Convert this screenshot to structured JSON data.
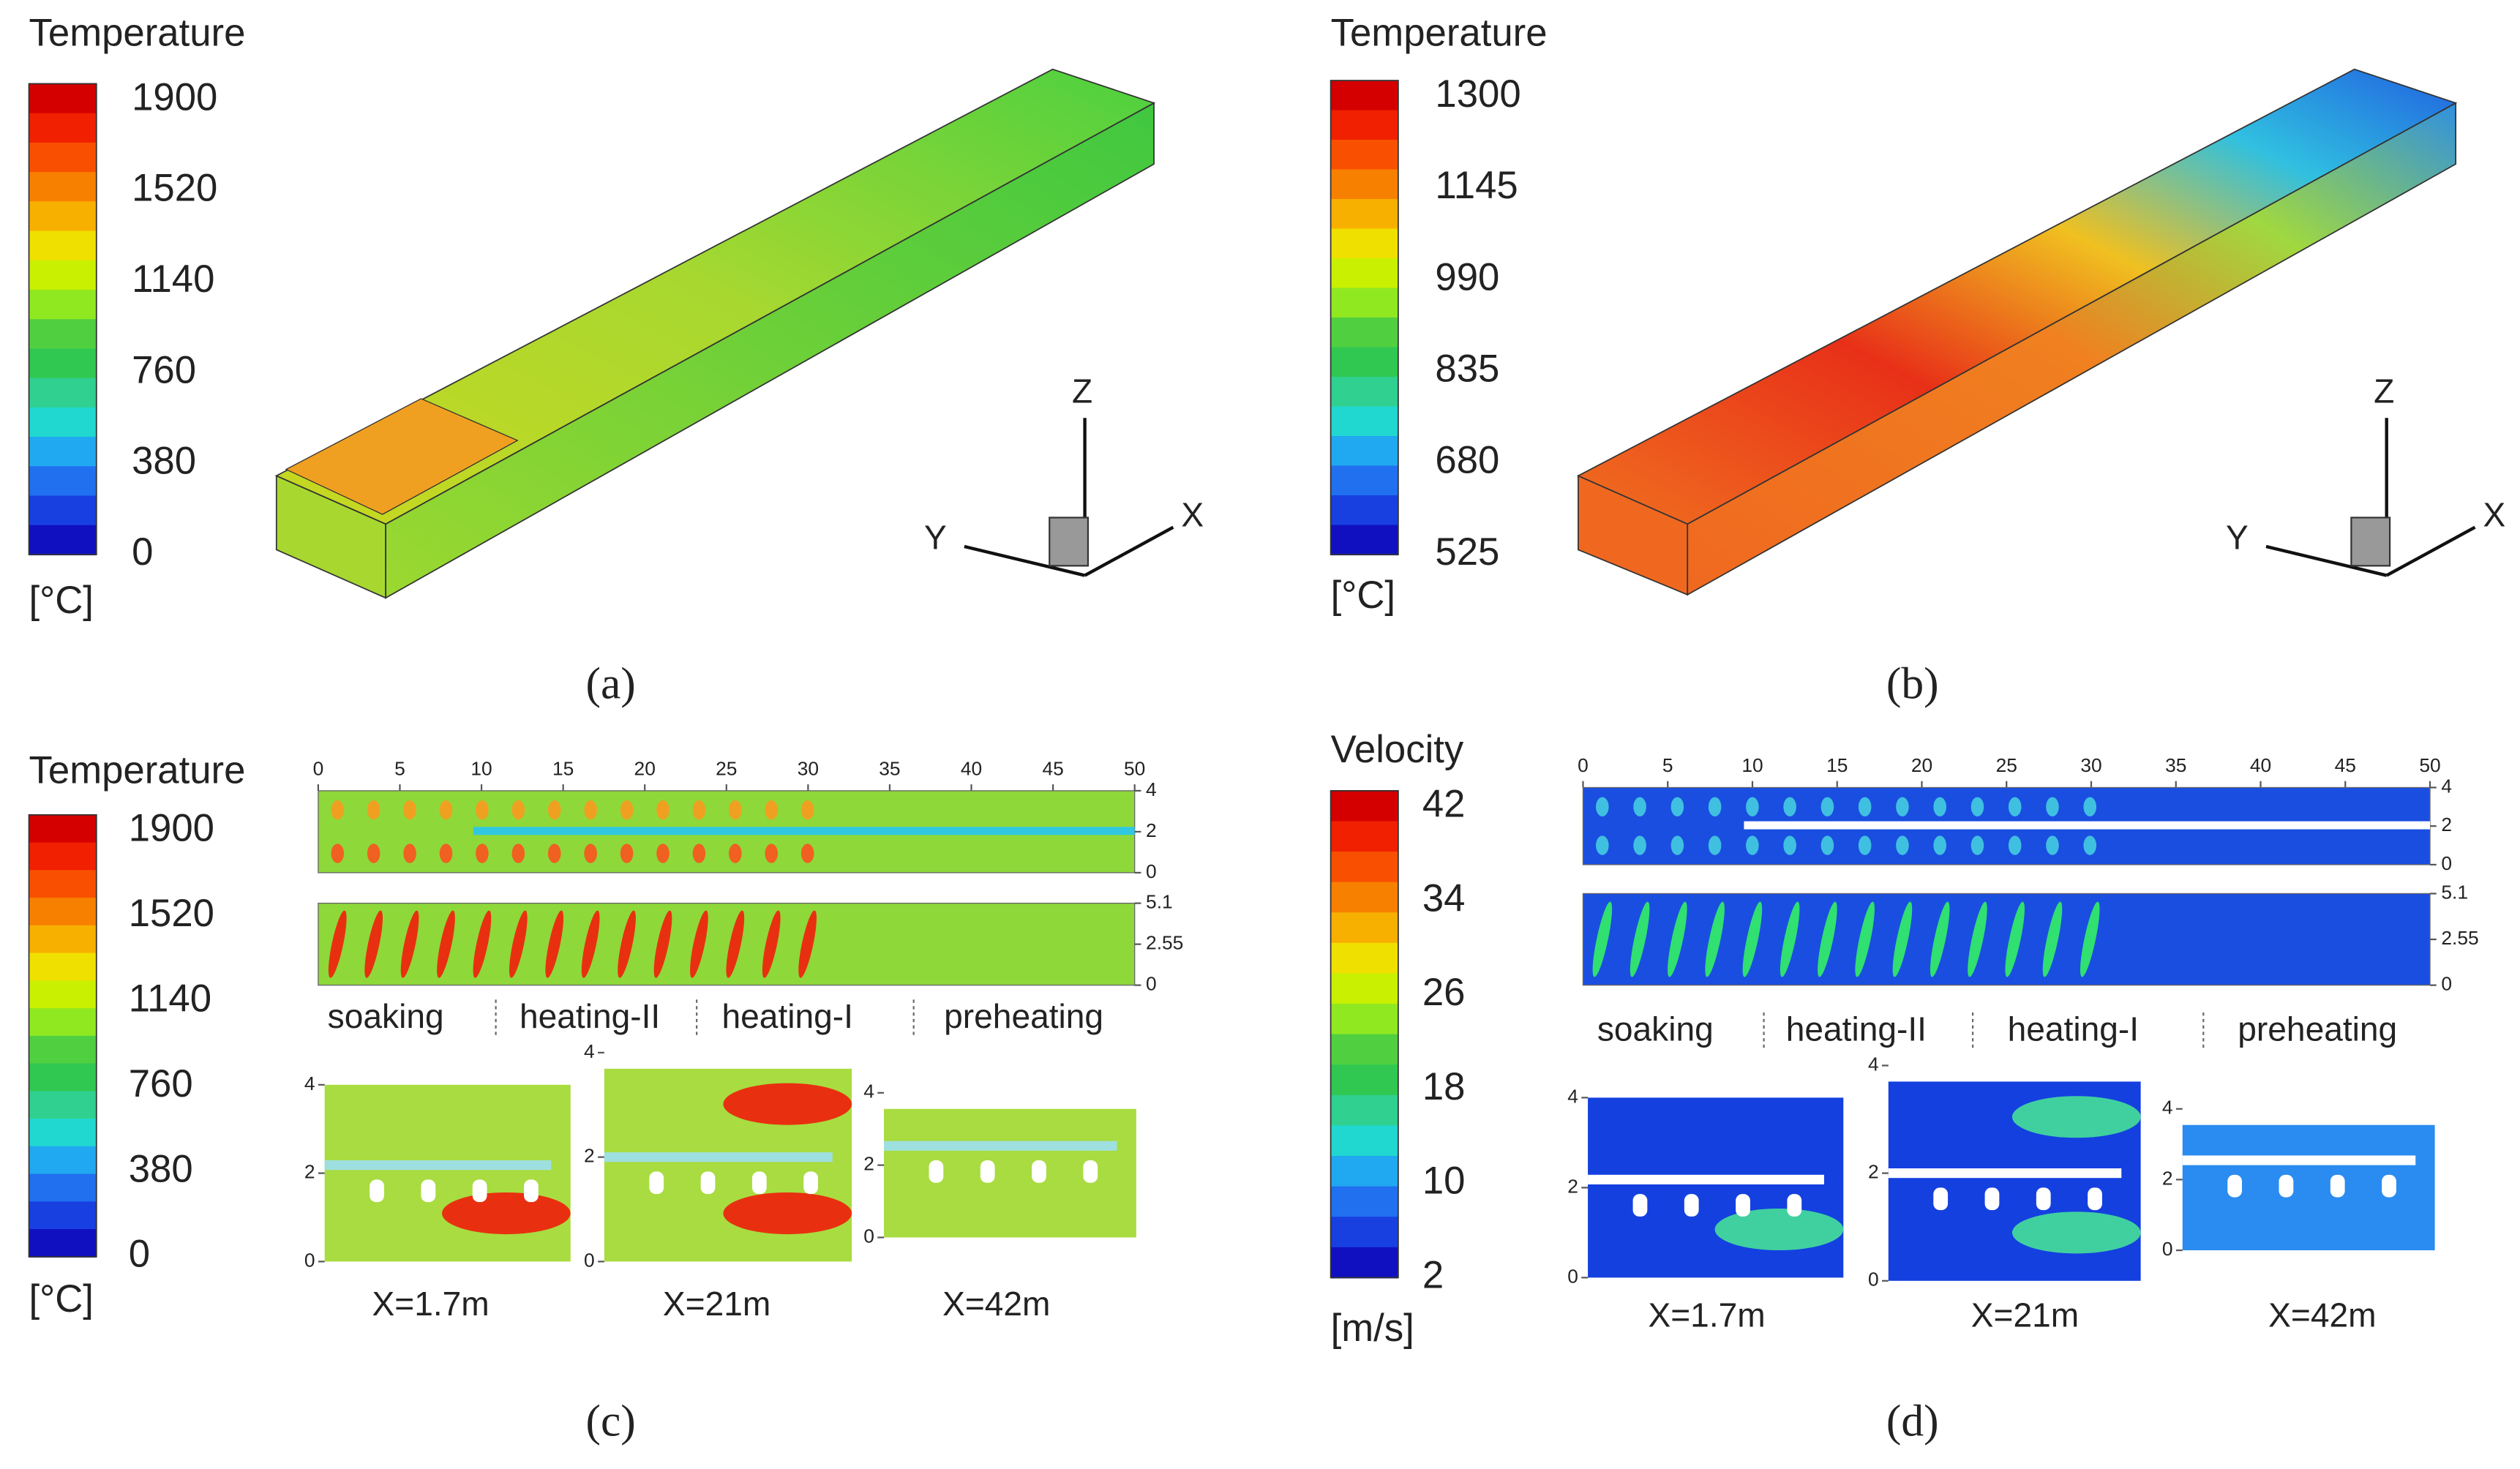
{
  "panels": [
    {
      "label": "(a)",
      "colorbar": {
        "title": "Temperature",
        "ticks": [
          1900,
          1520,
          1140,
          760,
          380,
          0
        ],
        "unit": "[°C]"
      },
      "axes": {
        "z": "Z",
        "y": "Y",
        "x": "X"
      }
    },
    {
      "label": "(b)",
      "colorbar": {
        "title": "Temperature",
        "ticks": [
          1300,
          1145,
          990,
          835,
          680,
          525
        ],
        "unit": "[°C]"
      },
      "axes": {
        "z": "Z",
        "y": "Y",
        "x": "X"
      }
    },
    {
      "label": "(c)",
      "colorbar": {
        "title": "Temperature",
        "ticks": [
          1900,
          1520,
          1140,
          760,
          380,
          0
        ],
        "unit": "[°C]"
      },
      "xticks": [
        0,
        5,
        10,
        15,
        20,
        25,
        30,
        35,
        40,
        45,
        50
      ],
      "strips": [
        {
          "yticks": [
            4,
            2,
            0
          ]
        },
        {
          "yticks": [
            5.1,
            2.55,
            0
          ]
        }
      ],
      "sections": [
        "soaking",
        "heating-II",
        "heating-I",
        "preheating"
      ],
      "slices": [
        {
          "label": "X=1.7m",
          "yticks": [
            4,
            2,
            0
          ]
        },
        {
          "label": "X=21m",
          "yticks": [
            4,
            2,
            0
          ]
        },
        {
          "label": "X=42m",
          "yticks": [
            4,
            2,
            0
          ]
        }
      ]
    },
    {
      "label": "(d)",
      "colorbar": {
        "title": "Velocity",
        "ticks": [
          42,
          34,
          26,
          18,
          10,
          2
        ],
        "unit": "[m/s]"
      },
      "xticks": [
        0,
        5,
        10,
        15,
        20,
        25,
        30,
        35,
        40,
        45,
        50
      ],
      "strips": [
        {
          "yticks": [
            4,
            2,
            0
          ]
        },
        {
          "yticks": [
            5.1,
            2.55,
            0
          ]
        }
      ],
      "sections": [
        "soaking",
        "heating-II",
        "heating-I",
        "preheating"
      ],
      "slices": [
        {
          "label": "X=1.7m",
          "yticks": [
            4,
            2,
            0
          ]
        },
        {
          "label": "X=21m",
          "yticks": [
            4,
            2,
            0
          ]
        },
        {
          "label": "X=42m",
          "yticks": [
            4,
            2,
            0
          ]
        }
      ]
    }
  ]
}
